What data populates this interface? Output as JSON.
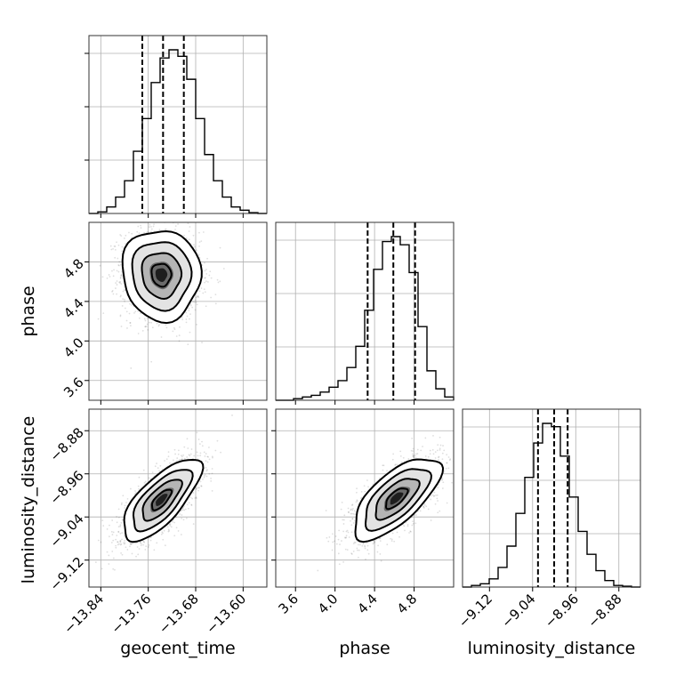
{
  "chart_data": {
    "type": "corner",
    "parameters": [
      "geocent_time",
      "phase",
      "luminosity_distance"
    ],
    "axes_labels": {
      "x": [
        "geocent_time",
        "phase",
        "luminosity_distance"
      ],
      "y_row2": "phase",
      "y_row3": "luminosity_distance"
    },
    "ranges": {
      "geocent_time": [
        -13.86,
        -13.56
      ],
      "phase": [
        3.4,
        5.2
      ],
      "luminosity_distance": [
        -9.17,
        -8.84
      ]
    },
    "ticks": {
      "geocent_time": [
        "−13.84",
        "−13.76",
        "−13.68",
        "−13.60"
      ],
      "phase_x": [
        "3.6",
        "4.0",
        "4.4",
        "4.8"
      ],
      "phase_y": [
        "3.6",
        "4.0",
        "4.4",
        "4.8"
      ],
      "luminosity_distance_x": [
        "−9.12",
        "−9.04",
        "−8.96",
        "−8.88"
      ],
      "luminosity_distance_y": [
        "−9.12",
        "−9.04",
        "−8.96",
        "−8.88"
      ]
    },
    "tick_values": {
      "geocent_time": [
        -13.84,
        -13.76,
        -13.68,
        -13.6
      ],
      "phase": [
        3.6,
        4.0,
        4.4,
        4.8
      ],
      "luminosity_distance": [
        -9.12,
        -9.04,
        -8.96,
        -8.88
      ]
    },
    "histograms": {
      "geocent_time": {
        "edges_range": [
          -13.86,
          -13.56
        ],
        "bins": 20,
        "counts": [
          0,
          0.01,
          0.04,
          0.1,
          0.2,
          0.38,
          0.58,
          0.8,
          0.95,
          1.0,
          0.96,
          0.82,
          0.58,
          0.36,
          0.2,
          0.1,
          0.04,
          0.02,
          0.005,
          0
        ],
        "quantiles": [
          -13.77,
          -13.735,
          -13.7
        ]
      },
      "phase": {
        "edges_range": [
          3.4,
          5.2
        ],
        "bins": 20,
        "counts": [
          0,
          0,
          0.01,
          0.02,
          0.03,
          0.05,
          0.08,
          0.12,
          0.2,
          0.33,
          0.55,
          0.8,
          0.97,
          1.0,
          0.95,
          0.78,
          0.45,
          0.18,
          0.07,
          0.02
        ],
        "quantiles": [
          4.33,
          4.59,
          4.81
        ]
      },
      "luminosity_distance": {
        "edges_range": [
          -9.17,
          -8.84
        ],
        "bins": 20,
        "counts": [
          0,
          0.01,
          0.02,
          0.05,
          0.12,
          0.25,
          0.45,
          0.67,
          0.88,
          1.0,
          0.98,
          0.8,
          0.55,
          0.34,
          0.2,
          0.1,
          0.04,
          0.01,
          0.005,
          0
        ],
        "quantiles": [
          -9.03,
          -9.0,
          -8.975
        ]
      }
    },
    "joint": [
      {
        "x": "geocent_time",
        "y": "phase",
        "mean": [
          -13.738,
          4.67
        ],
        "sigma": [
          0.033,
          0.23
        ],
        "rho": -0.05,
        "points": 6000
      },
      {
        "x": "geocent_time",
        "y": "luminosity_distance",
        "mean": [
          -13.738,
          -9.008
        ],
        "sigma": [
          0.033,
          0.038
        ],
        "rho": 0.72,
        "points": 6000
      },
      {
        "x": "phase",
        "y": "luminosity_distance",
        "mean": [
          4.62,
          -9.005
        ],
        "sigma": [
          0.22,
          0.038
        ],
        "rho": 0.68,
        "points": 6000
      }
    ],
    "contour_levels_sigma": [
      0.5,
      1.0,
      1.5,
      2.0
    ],
    "grid": true,
    "colors": {
      "line": "#000000",
      "grid": "#b0b0b0",
      "points": "#000000"
    }
  }
}
